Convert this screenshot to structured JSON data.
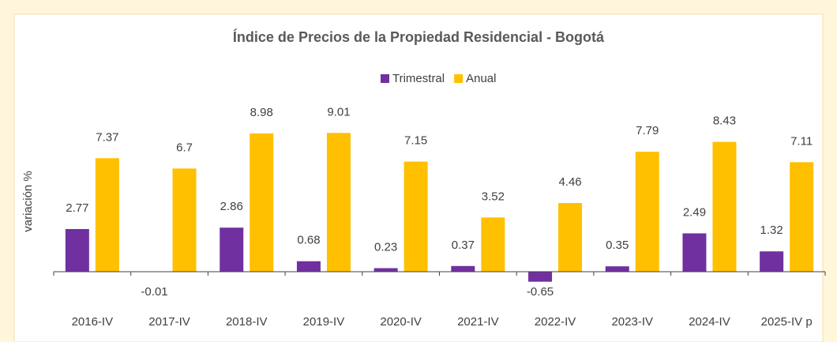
{
  "chart_data": {
    "type": "bar",
    "title": "Índice de Precios de la Propiedad Residencial - Bogotá",
    "y_label": "variación %",
    "categories": [
      "2016-IV",
      "2017-IV",
      "2018-IV",
      "2019-IV",
      "2020-IV",
      "2021-IV",
      "2022-IV",
      "2023-IV",
      "2024-IV",
      "2025-IV p"
    ],
    "series": [
      {
        "name": "Trimestral",
        "color": "#7030a0",
        "values": [
          2.77,
          -0.01,
          2.86,
          0.68,
          0.23,
          0.37,
          -0.65,
          0.35,
          2.49,
          1.32
        ]
      },
      {
        "name": "Anual",
        "color": "#ffc000",
        "values": [
          7.37,
          6.7,
          8.98,
          9.01,
          7.15,
          3.52,
          4.46,
          7.79,
          8.43,
          7.11
        ]
      }
    ],
    "ylim": [
      -1,
      10
    ],
    "legend": "top",
    "grid": false
  }
}
